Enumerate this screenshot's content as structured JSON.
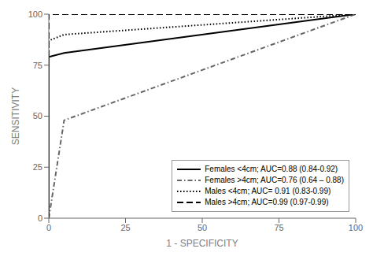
{
  "chart_data": {
    "type": "line",
    "xlabel": "1 - SPECIFICITY",
    "ylabel": "SENSITIVITY",
    "xlim": [
      0,
      100
    ],
    "ylim": [
      0,
      100
    ],
    "xticks": [
      0,
      25,
      50,
      75,
      100
    ],
    "yticks": [
      0,
      25,
      50,
      75,
      100
    ],
    "grid": false,
    "legend": "lower right",
    "series": [
      {
        "name": "Females <4cm; AUC=0.88 (0.84-0.92)",
        "color": "#000000",
        "line_style": "solid",
        "x": [
          0,
          0,
          5,
          100
        ],
        "values": [
          0,
          79,
          81,
          100
        ]
      },
      {
        "name": "Females >4cm; AUC=0.76 (0.64 – 0.88)",
        "color": "#666666",
        "line_style": "dashdot",
        "x": [
          0,
          5,
          100
        ],
        "values": [
          0,
          48,
          100
        ]
      },
      {
        "name": "Males <4cm; AUC= 0.91 (0.83-0.99)",
        "color": "#000000",
        "line_style": "dotted",
        "x": [
          0,
          0,
          5,
          100
        ],
        "values": [
          0,
          87,
          90,
          100
        ]
      },
      {
        "name": "Males >4cm; AUC=0.99 (0.97-0.99)",
        "color": "#000000",
        "line_style": "dashed",
        "x": [
          0,
          0,
          5,
          100
        ],
        "values": [
          0,
          100,
          100,
          100
        ]
      }
    ]
  }
}
